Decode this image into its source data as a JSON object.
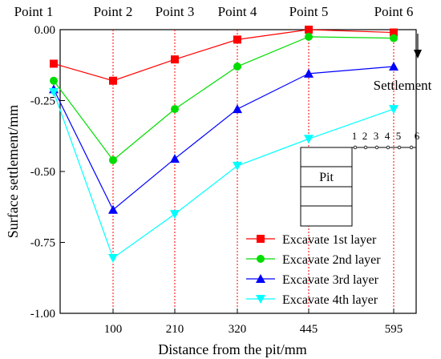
{
  "chart_data": {
    "type": "line",
    "title": "",
    "xlabel": "Distance from the pit/mm",
    "ylabel": "Surface settlement/mm",
    "x": [
      20,
      100,
      210,
      320,
      445,
      595
    ],
    "x_tick_labels": [
      "100",
      "210",
      "320",
      "445",
      "595"
    ],
    "x_tick_values": [
      100,
      210,
      320,
      445,
      595
    ],
    "y_tick_labels": [
      "0.00",
      "-0.25",
      "-0.50",
      "-0.75",
      "-1.00"
    ],
    "y_tick_values": [
      0.0,
      -0.25,
      -0.5,
      -0.75,
      -1.0
    ],
    "ylim": [
      -1.0,
      0.0
    ],
    "point_labels": [
      "Point 1",
      "Point 2",
      "Point 3",
      "Point 4",
      "Point 5",
      "Point 6"
    ],
    "series": [
      {
        "name": "Excavate 1st layer",
        "color": "#ff0000",
        "marker": "square",
        "values": [
          -0.12,
          -0.18,
          -0.105,
          -0.035,
          0.0,
          -0.01
        ]
      },
      {
        "name": "Excavate 2nd layer",
        "color": "#00dd00",
        "marker": "circle",
        "values": [
          -0.18,
          -0.46,
          -0.28,
          -0.13,
          -0.025,
          -0.03
        ]
      },
      {
        "name": "Excavate 3rd layer",
        "color": "#0000ff",
        "marker": "triangle-up",
        "values": [
          -0.21,
          -0.635,
          -0.455,
          -0.28,
          -0.155,
          -0.13
        ]
      },
      {
        "name": "Excavate 4th layer",
        "color": "#00ffff",
        "marker": "triangle-down",
        "values": [
          -0.22,
          -0.805,
          -0.65,
          -0.48,
          -0.385,
          -0.28
        ]
      }
    ],
    "legend_position": "bottom-right",
    "settlement_label": "Settlement",
    "inset": {
      "pit_label": "Pit",
      "point_numbers": [
        "1",
        "2",
        "3",
        "4",
        "5",
        "6"
      ]
    }
  }
}
